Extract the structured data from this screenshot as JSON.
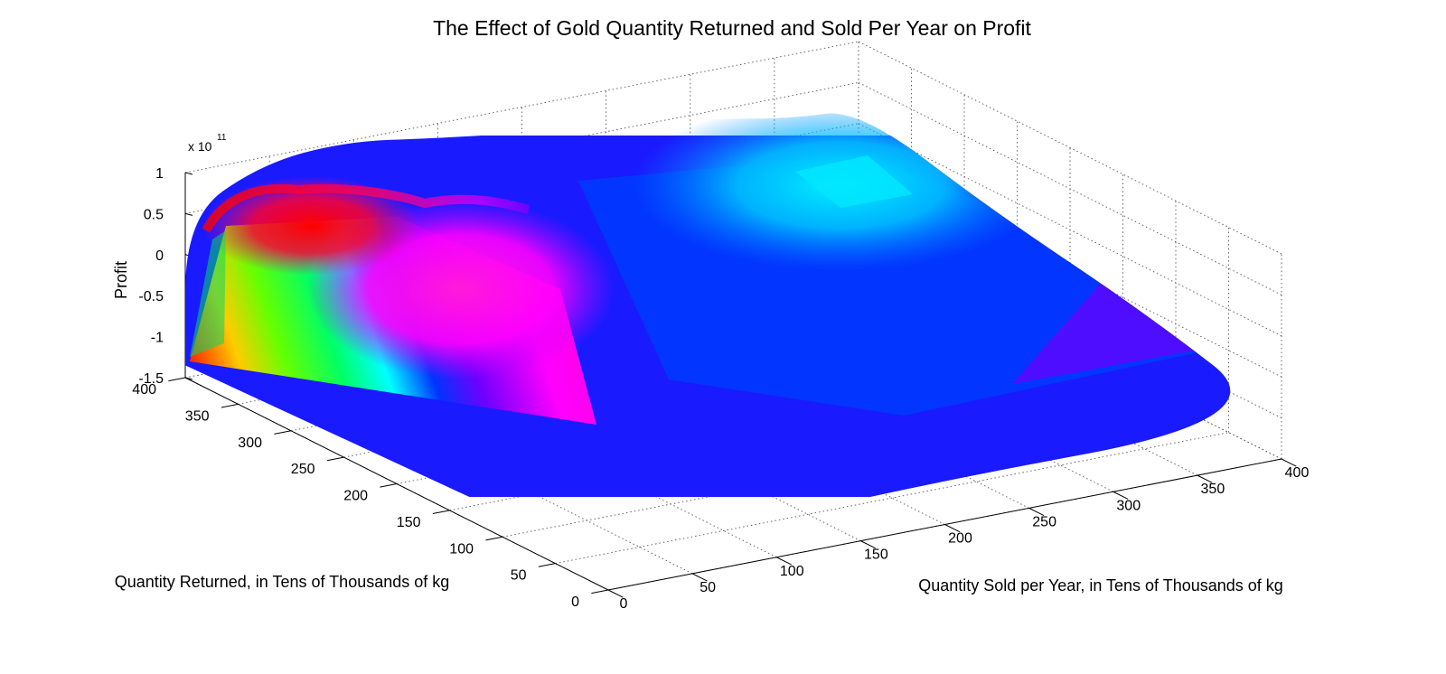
{
  "chart_data": {
    "type": "surface",
    "title": "The Effect of Gold Quantity Returned and Sold Per Year on Profit",
    "xlabel": "Quantity Sold per Year, in Tens of Thousands of kg",
    "ylabel": "Quantity Returned, in Tens of Thousands of kg",
    "zlabel": "Profit",
    "z_exponent_base": "x 10",
    "z_exponent_power": "11",
    "x_range": [
      0,
      400
    ],
    "y_range": [
      0,
      400
    ],
    "z_range": [
      -1.5,
      1
    ],
    "x_ticks": [
      "0",
      "50",
      "100",
      "150",
      "200",
      "250",
      "300",
      "350",
      "400"
    ],
    "y_ticks": [
      "0",
      "50",
      "100",
      "150",
      "200",
      "250",
      "300",
      "350",
      "400"
    ],
    "z_ticks": [
      "-1.5",
      "-1",
      "-0.5",
      "0",
      "0.5",
      "1"
    ],
    "x_tick_values": [
      0,
      50,
      100,
      150,
      200,
      250,
      300,
      350,
      400
    ],
    "y_tick_values": [
      0,
      50,
      100,
      150,
      200,
      250,
      300,
      350,
      400
    ],
    "z_tick_values": [
      -1.5,
      -1,
      -0.5,
      0,
      0.5,
      1
    ],
    "grid": true,
    "colormap": "hsv",
    "surface_points": [
      {
        "x": 0,
        "y": 400,
        "z": -1.35
      },
      {
        "x": 0,
        "y": 400,
        "z": 0.45
      },
      {
        "x": 45,
        "y": 400,
        "z": 0.92
      },
      {
        "x": 95,
        "y": 400,
        "z": 1.0
      },
      {
        "x": 150,
        "y": 400,
        "z": 0.82
      },
      {
        "x": 230,
        "y": 400,
        "z": 0.6
      },
      {
        "x": 310,
        "y": 400,
        "z": 0.42
      },
      {
        "x": 360,
        "y": 400,
        "z": 0.22
      },
      {
        "x": 400,
        "y": 400,
        "z": 0.18
      },
      {
        "x": 400,
        "y": 270,
        "z": -0.25
      },
      {
        "x": 400,
        "y": 130,
        "z": -0.55
      },
      {
        "x": 400,
        "y": 0,
        "z": -1.0
      },
      {
        "x": 160,
        "y": 0,
        "z": -0.95
      },
      {
        "x": 0,
        "y": 0,
        "z": -1.15
      }
    ]
  }
}
